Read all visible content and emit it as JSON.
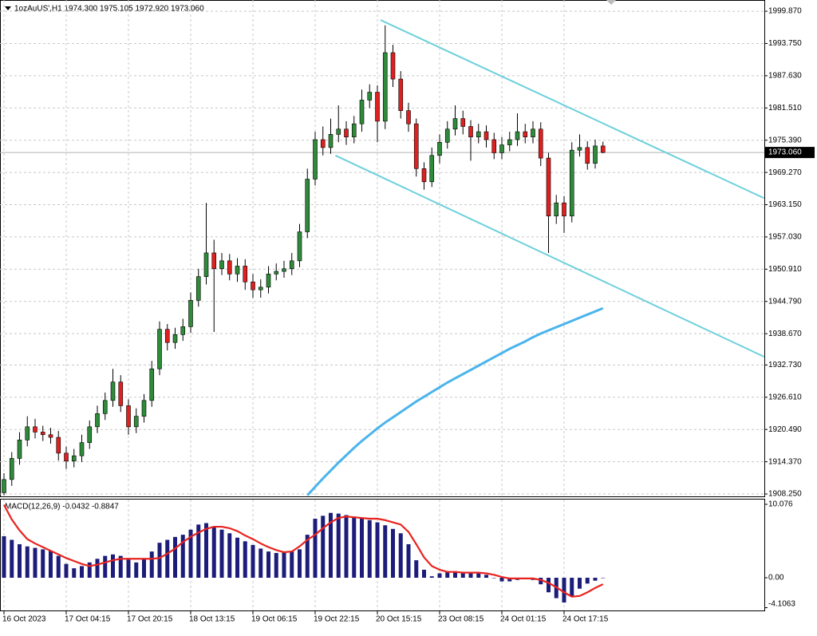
{
  "chart_data": [
    {
      "type": "candlestick",
      "title": "1ozAuUS',H1  1974.300 1975.105 1972.920 1973.060",
      "categories": [
        "16 Oct 2023",
        null,
        null,
        null,
        null,
        null,
        null,
        null,
        "17 Oct 04:15",
        null,
        null,
        null,
        null,
        null,
        null,
        null,
        "17 Oct 20:15",
        null,
        null,
        null,
        null,
        null,
        null,
        null,
        "18 Oct 13:15",
        null,
        null,
        null,
        null,
        null,
        null,
        null,
        "19 Oct 06:15",
        null,
        null,
        null,
        null,
        null,
        null,
        null,
        "19 Oct 22:15",
        null,
        null,
        null,
        null,
        null,
        null,
        null,
        "20 Oct 15:15",
        null,
        null,
        null,
        null,
        null,
        null,
        null,
        "23 Oct 08:15",
        null,
        null,
        null,
        null,
        null,
        null,
        null,
        "24 Oct 01:15",
        null,
        null,
        null,
        null,
        null,
        null,
        null,
        "24 Oct 17:15",
        null,
        null,
        null,
        null,
        null
      ],
      "open": [
        1908.5,
        1911.0,
        1915.0,
        1918.5,
        1921.0,
        1920.0,
        1919.5,
        1919.0,
        1916.0,
        1914.5,
        1915.5,
        1918.0,
        1921.0,
        1923.5,
        1926.0,
        1929.5,
        1925.0,
        1921.0,
        1923.0,
        1926.0,
        1932.0,
        1939.5,
        1937.0,
        1938.5,
        1940.0,
        1945.0,
        1949.5,
        1954.0,
        1951.0,
        1952.5,
        1950.0,
        1951.5,
        1948.5,
        1947.0,
        1947.5,
        1950.0,
        1950.5,
        1951.0,
        1952.5,
        1958.0,
        1968.0,
        1975.5,
        1974.0,
        1976.5,
        1977.5,
        1976.0,
        1978.5,
        1983.0,
        1984.5,
        1979.0,
        1992.0,
        1987.0,
        1981.0,
        1978.5,
        1970.0,
        1967.5,
        1972.5,
        1975.0,
        1977.5,
        1979.5,
        1978.0,
        1976.0,
        1977.0,
        1975.5,
        1973.0,
        1974.5,
        1975.5,
        1977.0,
        1976.0,
        1977.5,
        1972.0,
        1961.0,
        1963.5,
        1961.0,
        1973.5,
        1974.0,
        1971.0,
        1974.3
      ],
      "high": [
        1912.2,
        1916.2,
        1920.0,
        1923.0,
        1922.5,
        1921.2,
        1920.8,
        1920.2,
        1917.2,
        1916.8,
        1919.5,
        1922.2,
        1925.0,
        1927.5,
        1932.0,
        1930.8,
        1926.2,
        1924.5,
        1927.2,
        1933.5,
        1941.0,
        1940.5,
        1939.8,
        1941.5,
        1946.5,
        1951.0,
        1963.5,
        1956.5,
        1954.0,
        1953.8,
        1953.0,
        1952.8,
        1950.0,
        1949.0,
        1951.5,
        1952.0,
        1952.5,
        1954.0,
        1959.5,
        1970.0,
        1977.0,
        1978.0,
        1979.5,
        1982.0,
        1979.0,
        1980.0,
        1985.0,
        1986.0,
        1985.8,
        1997.2,
        1993.5,
        1988.5,
        1982.5,
        1979.5,
        1971.2,
        1974.0,
        1976.5,
        1979.0,
        1982.0,
        1981.0,
        1979.2,
        1978.5,
        1978.2,
        1976.8,
        1976.0,
        1977.0,
        1980.5,
        1978.5,
        1979.0,
        1978.8,
        1973.0,
        1965.0,
        1964.8,
        1975.0,
        1976.5,
        1975.2,
        1975.5,
        1975.105
      ],
      "low": [
        1908.0,
        1909.8,
        1913.8,
        1917.3,
        1918.8,
        1918.3,
        1917.8,
        1914.6,
        1913.0,
        1913.3,
        1914.3,
        1916.8,
        1919.8,
        1922.3,
        1924.8,
        1923.8,
        1919.5,
        1919.8,
        1921.8,
        1924.8,
        1930.8,
        1935.5,
        1935.8,
        1937.3,
        1938.8,
        1943.8,
        1948.0,
        1939.0,
        1949.8,
        1948.8,
        1948.5,
        1947.0,
        1945.5,
        1945.5,
        1946.3,
        1948.8,
        1949.3,
        1949.8,
        1951.3,
        1956.8,
        1966.8,
        1972.5,
        1972.8,
        1975.0,
        1974.5,
        1974.8,
        1977.0,
        1981.5,
        1975.0,
        1977.5,
        1985.5,
        1979.5,
        1977.0,
        1968.5,
        1966.0,
        1966.5,
        1971.0,
        1973.8,
        1976.3,
        1976.5,
        1971.5,
        1974.8,
        1974.0,
        1971.8,
        1971.8,
        1973.3,
        1974.3,
        1974.8,
        1974.8,
        1970.5,
        1954.0,
        1959.5,
        1957.8,
        1959.8,
        1972.3,
        1969.8,
        1970.0,
        1972.92
      ],
      "close": [
        1911.0,
        1915.0,
        1918.5,
        1921.0,
        1920.0,
        1919.5,
        1919.0,
        1916.0,
        1914.5,
        1915.5,
        1918.0,
        1921.0,
        1923.5,
        1926.0,
        1929.5,
        1925.0,
        1921.0,
        1923.0,
        1926.0,
        1932.0,
        1939.5,
        1937.0,
        1938.5,
        1940.0,
        1945.0,
        1949.5,
        1954.0,
        1951.0,
        1952.5,
        1950.0,
        1951.5,
        1948.5,
        1947.0,
        1947.5,
        1950.0,
        1950.5,
        1951.0,
        1952.5,
        1958.0,
        1968.0,
        1975.5,
        1974.0,
        1976.5,
        1977.5,
        1976.0,
        1978.5,
        1983.0,
        1984.5,
        1979.0,
        1992.0,
        1987.0,
        1981.0,
        1978.5,
        1970.0,
        1967.5,
        1972.5,
        1975.0,
        1977.5,
        1979.5,
        1978.0,
        1976.0,
        1977.0,
        1975.5,
        1973.0,
        1974.5,
        1975.5,
        1977.0,
        1976.0,
        1977.5,
        1972.0,
        1961.0,
        1963.5,
        1961.0,
        1973.5,
        1974.0,
        1971.0,
        1974.3,
        1973.06
      ],
      "up_color": "#2e8b3a",
      "down_color": "#e02020",
      "moving_average": {
        "color": "#4ab4ec",
        "values": [
          null,
          null,
          null,
          null,
          null,
          null,
          null,
          null,
          null,
          null,
          null,
          null,
          null,
          null,
          null,
          null,
          null,
          null,
          null,
          null,
          null,
          null,
          null,
          null,
          null,
          null,
          null,
          null,
          null,
          null,
          null,
          null,
          null,
          null,
          null,
          null,
          null,
          null,
          null,
          1908.0,
          1909.6,
          1911.2,
          1912.7,
          1914.2,
          1915.6,
          1917.0,
          1918.3,
          1919.5,
          1920.7,
          1921.8,
          1922.8,
          1923.8,
          1924.8,
          1925.8,
          1926.7,
          1927.6,
          1928.5,
          1929.4,
          1930.2,
          1931.0,
          1931.8,
          1932.6,
          1933.4,
          1934.2,
          1935.0,
          1935.8,
          1936.5,
          1937.2,
          1938.0,
          1938.7,
          1939.3,
          1939.9,
          1940.5,
          1941.1,
          1941.7,
          1942.3,
          1942.9,
          1943.5
        ]
      },
      "trendlines": [
        {
          "color": "#6dd0dc",
          "x": [
            48.4,
            97.7
          ],
          "y": [
            1998.2,
            1964.4
          ]
        },
        {
          "color": "#6dd0dc",
          "x": [
            42.6,
            97.7
          ],
          "y": [
            1972.5,
            1934.3
          ]
        }
      ],
      "last_price": {
        "value": 1973.06,
        "label": "1973.060"
      },
      "ylim": [
        1907.8,
        2002.0
      ],
      "yticks": [
        {
          "value": 1999.87,
          "label": "1999.870"
        },
        {
          "value": 1993.75,
          "label": "1993.750"
        },
        {
          "value": 1987.63,
          "label": "1987.630"
        },
        {
          "value": 1981.51,
          "label": "1981.510"
        },
        {
          "value": 1975.39,
          "label": "1975.390"
        },
        {
          "value": 1969.27,
          "label": "1969.270"
        },
        {
          "value": 1963.15,
          "label": "1963.150"
        },
        {
          "value": 1957.03,
          "label": "1957.030"
        },
        {
          "value": 1950.91,
          "label": "1950.910"
        },
        {
          "value": 1944.79,
          "label": "1944.790"
        },
        {
          "value": 1938.67,
          "label": "1938.670"
        },
        {
          "value": 1932.73,
          "label": "1932.730"
        },
        {
          "value": 1926.61,
          "label": "1926.610"
        },
        {
          "value": 1920.49,
          "label": "1920.490"
        },
        {
          "value": 1914.37,
          "label": "1914.370"
        },
        {
          "value": 1908.25,
          "label": "1908.250"
        }
      ],
      "grid": true
    },
    {
      "type": "macd",
      "title": "MACD(12,26,9) -0.0432 -0.8847",
      "histogram": {
        "color": "#1c1c7a",
        "values": [
          5.7,
          5.2,
          4.6,
          4.3,
          4.1,
          3.9,
          3.7,
          3.0,
          1.9,
          1.3,
          1.6,
          2.1,
          2.6,
          3.0,
          3.2,
          3.0,
          2.5,
          2.1,
          2.6,
          3.6,
          4.8,
          5.2,
          5.6,
          5.9,
          6.6,
          7.3,
          7.5,
          7.0,
          6.6,
          6.1,
          5.5,
          5.0,
          4.5,
          4.0,
          3.6,
          3.4,
          3.5,
          3.7,
          3.9,
          5.9,
          8.1,
          8.5,
          8.9,
          8.8,
          8.6,
          8.4,
          8.2,
          7.9,
          7.6,
          7.2,
          6.7,
          6.1,
          4.6,
          2.4,
          1.1,
          0.2,
          0.6,
          0.9,
          0.9,
          0.8,
          0.8,
          0.7,
          0.4,
          0.0,
          -0.5,
          -0.5,
          -0.3,
          -0.2,
          -0.3,
          -0.9,
          -2.0,
          -2.8,
          -3.4,
          -2.5,
          -1.5,
          -0.8,
          -0.4,
          -0.0432
        ]
      },
      "signal": {
        "color": "#e8231f",
        "values": [
          10.0,
          8.0,
          6.5,
          5.3,
          4.7,
          4.2,
          3.7,
          3.2,
          2.7,
          2.3,
          1.9,
          1.6,
          1.8,
          2.1,
          2.4,
          2.6,
          2.6,
          2.6,
          2.6,
          2.6,
          2.7,
          3.3,
          4.0,
          4.9,
          5.6,
          6.2,
          6.7,
          7.0,
          7.0,
          6.8,
          6.4,
          5.8,
          5.3,
          4.7,
          4.2,
          3.8,
          3.5,
          3.6,
          4.3,
          5.2,
          5.9,
          6.8,
          7.6,
          8.2,
          8.4,
          8.3,
          8.2,
          8.1,
          8.1,
          7.9,
          7.6,
          7.3,
          6.3,
          4.6,
          2.8,
          1.6,
          1.1,
          0.8,
          0.8,
          0.7,
          0.7,
          0.7,
          0.6,
          0.4,
          0.1,
          -0.1,
          -0.1,
          -0.1,
          -0.1,
          -0.3,
          -0.7,
          -1.3,
          -2.0,
          -2.6,
          -2.5,
          -2.0,
          -1.4,
          -0.8847
        ]
      },
      "ylim": [
        -4.49,
        10.73
      ],
      "yticks": [
        10.076,
        {
          "value": 0,
          "label": "0.00"
        },
        -4.1063
      ]
    }
  ]
}
